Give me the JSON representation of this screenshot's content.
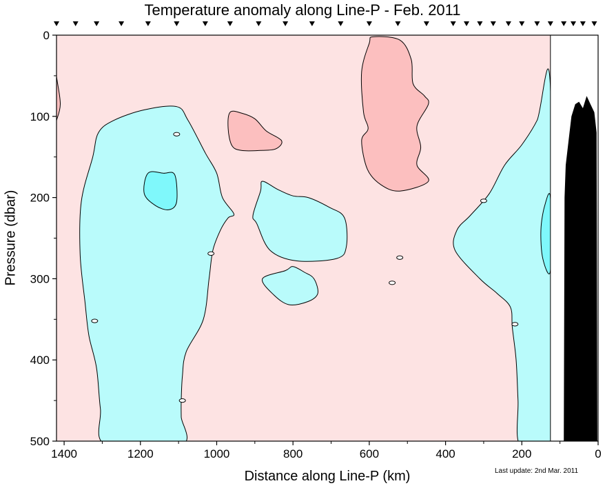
{
  "chart_data": {
    "type": "heatmap",
    "title": "Temperature anomaly along Line-P - Feb. 2011",
    "xlabel": "Distance along Line-P (km)",
    "ylabel": "Pressure (dbar)",
    "xlim": [
      1420,
      0
    ],
    "ylim": [
      0,
      500
    ],
    "x_reversed": true,
    "y_reversed": true,
    "x_ticks": [
      1400,
      1200,
      1000,
      800,
      600,
      400,
      200,
      0
    ],
    "y_ticks": [
      0,
      100,
      200,
      300,
      400,
      500
    ],
    "station_markers_km": [
      1420,
      1370,
      1315,
      1250,
      1180,
      1105,
      1030,
      965,
      890,
      820,
      750,
      675,
      600,
      525,
      450,
      380,
      345,
      310,
      275,
      235,
      200,
      160,
      125,
      90,
      65,
      40,
      10
    ],
    "data_extent_km": 125,
    "colors": {
      "background_anomaly": "#fde3e3",
      "warm_anomaly": "#fcbfbf",
      "cool_anomaly": "#b9fbfb",
      "strong_cool_anomaly": "#7ff8fb",
      "bathymetry": "#000000",
      "contour": "#000000"
    },
    "regions": [
      {
        "category": "warm",
        "polygon": [
          [
            1425,
            45
          ],
          [
            1417,
            60
          ],
          [
            1410,
            85
          ],
          [
            1418,
            102
          ],
          [
            1425,
            105
          ]
        ]
      },
      {
        "category": "warm",
        "polygon": [
          [
            965,
            95
          ],
          [
            935,
            96
          ],
          [
            900,
            103
          ],
          [
            870,
            118
          ],
          [
            830,
            130
          ],
          [
            845,
            140
          ],
          [
            885,
            142
          ],
          [
            935,
            142
          ],
          [
            960,
            136
          ],
          [
            970,
            115
          ]
        ]
      },
      {
        "category": "warm",
        "polygon": [
          [
            590,
            2
          ],
          [
            520,
            6
          ],
          [
            490,
            30
          ],
          [
            485,
            60
          ],
          [
            455,
            75
          ],
          [
            445,
            85
          ],
          [
            475,
            112
          ],
          [
            465,
            138
          ],
          [
            475,
            160
          ],
          [
            445,
            180
          ],
          [
            520,
            192
          ],
          [
            570,
            184
          ],
          [
            605,
            165
          ],
          [
            620,
            130
          ],
          [
            603,
            115
          ],
          [
            615,
            95
          ],
          [
            620,
            45
          ],
          [
            600,
            10
          ]
        ]
      },
      {
        "category": "cool",
        "polygon": [
          [
            1105,
            88
          ],
          [
            1190,
            92
          ],
          [
            1270,
            105
          ],
          [
            1310,
            120
          ],
          [
            1325,
            150
          ],
          [
            1355,
            205
          ],
          [
            1358,
            270
          ],
          [
            1345,
            330
          ],
          [
            1335,
            370
          ],
          [
            1315,
            410
          ],
          [
            1305,
            460
          ],
          [
            1290,
            505
          ],
          [
            1092,
            505
          ],
          [
            1093,
            470
          ],
          [
            1093,
            450
          ],
          [
            1090,
            420
          ],
          [
            1080,
            390
          ],
          [
            1035,
            350
          ],
          [
            1020,
            300
          ],
          [
            1010,
            265
          ],
          [
            990,
            240
          ],
          [
            970,
            225
          ],
          [
            955,
            220
          ],
          [
            985,
            200
          ],
          [
            1000,
            170
          ],
          [
            1030,
            145
          ],
          [
            1075,
            105
          ]
        ]
      },
      {
        "category": "cool",
        "polygon": [
          [
            880,
            180
          ],
          [
            840,
            190
          ],
          [
            800,
            198
          ],
          [
            760,
            200
          ],
          [
            705,
            212
          ],
          [
            665,
            225
          ],
          [
            660,
            260
          ],
          [
            685,
            275
          ],
          [
            790,
            278
          ],
          [
            860,
            265
          ],
          [
            895,
            232
          ],
          [
            905,
            222
          ],
          [
            885,
            192
          ]
        ]
      },
      {
        "category": "cool",
        "polygon": [
          [
            800,
            285
          ],
          [
            770,
            292
          ],
          [
            745,
            300
          ],
          [
            735,
            318
          ],
          [
            760,
            328
          ],
          [
            810,
            332
          ],
          [
            850,
            320
          ],
          [
            880,
            300
          ],
          [
            820,
            290
          ]
        ]
      },
      {
        "category": "cool",
        "polygon": [
          [
            125,
            65
          ],
          [
            160,
            105
          ],
          [
            200,
            135
          ],
          [
            245,
            160
          ],
          [
            285,
            195
          ],
          [
            335,
            222
          ],
          [
            370,
            240
          ],
          [
            375,
            265
          ],
          [
            310,
            300
          ],
          [
            265,
            318
          ],
          [
            230,
            335
          ],
          [
            225,
            360
          ],
          [
            215,
            400
          ],
          [
            210,
            450
          ],
          [
            205,
            505
          ],
          [
            125,
            505
          ]
        ]
      },
      {
        "category": "strong_cool",
        "polygon": [
          [
            1180,
            170
          ],
          [
            1140,
            170
          ],
          [
            1110,
            172
          ],
          [
            1105,
            205
          ],
          [
            1125,
            215
          ],
          [
            1160,
            210
          ],
          [
            1190,
            195
          ]
        ]
      },
      {
        "category": "strong_cool",
        "polygon": [
          [
            125,
            200
          ],
          [
            140,
            210
          ],
          [
            150,
            240
          ],
          [
            145,
            275
          ],
          [
            125,
            290
          ]
        ]
      }
    ],
    "contour_markers": [
      [
        1105,
        122
      ],
      [
        1015,
        269
      ],
      [
        1320,
        352
      ],
      [
        1090,
        450
      ],
      [
        520,
        274
      ],
      [
        540,
        305
      ],
      [
        300,
        204
      ],
      [
        218,
        356
      ]
    ],
    "bathymetry": [
      [
        90,
        505
      ],
      [
        88,
        200
      ],
      [
        85,
        160
      ],
      [
        75,
        120
      ],
      [
        70,
        100
      ],
      [
        60,
        85
      ],
      [
        50,
        82
      ],
      [
        40,
        90
      ],
      [
        30,
        75
      ],
      [
        20,
        85
      ],
      [
        10,
        95
      ],
      [
        4,
        120
      ],
      [
        2,
        505
      ]
    ],
    "footnote": "Last update: 2nd Mar. 2011"
  }
}
